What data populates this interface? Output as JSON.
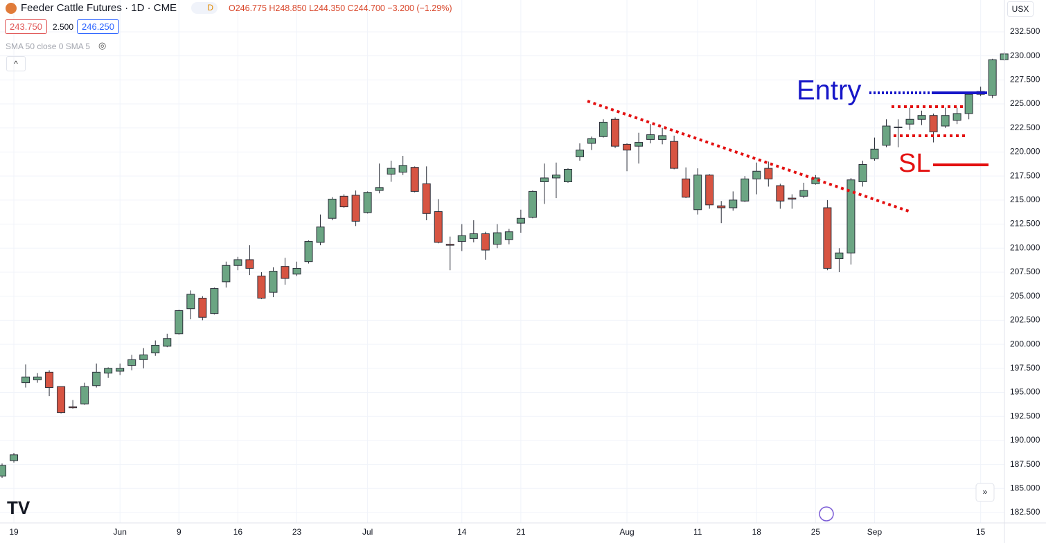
{
  "toolbar": {
    "symbol": "Feeder Cattle Futures · 1D · CME",
    "badge": "D",
    "ohlc": "O246.775 H248.850 L244.350 C244.700 −3.200 (−1.29%)",
    "bid": "243.750",
    "spread": "2.500",
    "ask": "246.250",
    "indicator": "SMA 50 close 0 SMA 5",
    "currency": "USX"
  },
  "chart_data": {
    "type": "candlestick",
    "up_color": "#6ba583",
    "down_color": "#d75442",
    "outline_color": "#2a2e39",
    "grid": true,
    "annotations": {
      "entry": "Entry",
      "stop": "SL"
    },
    "categories": [
      null,
      "19",
      null,
      null,
      null,
      null,
      null,
      null,
      null,
      null,
      "Jun",
      null,
      null,
      null,
      null,
      "9",
      null,
      null,
      null,
      null,
      "16",
      null,
      null,
      null,
      null,
      "23",
      null,
      null,
      null,
      null,
      null,
      "Jul",
      null,
      null,
      null,
      null,
      null,
      null,
      null,
      "14",
      null,
      null,
      null,
      null,
      "21",
      null,
      null,
      null,
      null,
      null,
      null,
      null,
      null,
      "Aug",
      null,
      null,
      null,
      null,
      null,
      "11",
      null,
      null,
      null,
      null,
      "18",
      null,
      null,
      null,
      null,
      "25",
      null,
      null,
      null,
      null,
      "Sep",
      null,
      null,
      null,
      null,
      null,
      null,
      null,
      null,
      "15",
      null,
      null
    ],
    "open": [
      186.3,
      187.9,
      196.0,
      196.3,
      197.1,
      195.6,
      193.5,
      193.8,
      195.7,
      197.0,
      197.2,
      197.8,
      198.4,
      199.1,
      199.8,
      201.1,
      203.7,
      204.8,
      203.2,
      206.5,
      208.2,
      208.8,
      207.1,
      205.4,
      208.1,
      207.3,
      208.6,
      210.6,
      213.1,
      215.4,
      215.5,
      213.7,
      216.0,
      217.7,
      217.9,
      218.4,
      216.7,
      213.8,
      210.4,
      210.7,
      211.0,
      211.5,
      210.4,
      210.9,
      212.6,
      213.2,
      216.9,
      217.3,
      216.9,
      219.5,
      220.9,
      221.6,
      223.4,
      220.8,
      220.6,
      221.3,
      221.3,
      221.1,
      217.2,
      214.0,
      217.6,
      214.4,
      214.2,
      214.9,
      217.2,
      218.3,
      216.5,
      215.2,
      215.4,
      216.7,
      214.2,
      208.9,
      209.5,
      216.9,
      219.3,
      220.7,
      222.6,
      222.9,
      223.4,
      223.8,
      222.7,
      223.3,
      224.0,
      226.3,
      225.9,
      229.6
    ],
    "high": [
      187.6,
      188.7,
      197.9,
      197.0,
      197.3,
      195.6,
      194.2,
      196.0,
      198.0,
      197.6,
      198.0,
      198.9,
      199.6,
      200.4,
      201.1,
      203.6,
      205.6,
      205.0,
      205.9,
      208.6,
      209.1,
      210.3,
      207.5,
      208.0,
      209.0,
      208.6,
      210.8,
      213.5,
      215.3,
      215.6,
      216.0,
      215.9,
      218.8,
      219.1,
      219.6,
      218.5,
      218.5,
      215.1,
      211.2,
      212.5,
      212.9,
      211.7,
      212.5,
      212.0,
      214.0,
      216.0,
      218.8,
      218.9,
      218.3,
      220.9,
      221.6,
      223.4,
      223.6,
      220.9,
      222.0,
      222.9,
      222.5,
      221.7,
      218.4,
      218.3,
      217.7,
      214.9,
      215.9,
      217.5,
      218.9,
      219.0,
      216.7,
      215.6,
      216.8,
      217.6,
      215.0,
      210.0,
      217.3,
      219.1,
      221.5,
      223.4,
      223.4,
      224.6,
      224.3,
      224.0,
      224.6,
      224.6,
      226.2,
      226.8,
      229.7,
      230.4
    ],
    "low": [
      186.1,
      187.7,
      195.5,
      196.0,
      194.6,
      192.8,
      193.3,
      193.7,
      195.5,
      196.5,
      196.8,
      197.3,
      197.5,
      198.8,
      199.7,
      201.0,
      202.6,
      202.5,
      203.1,
      205.9,
      207.7,
      207.2,
      204.7,
      204.9,
      206.2,
      207.1,
      208.4,
      210.3,
      212.9,
      214.2,
      212.3,
      213.6,
      215.7,
      216.9,
      217.6,
      215.8,
      212.9,
      210.5,
      207.7,
      209.7,
      210.6,
      208.8,
      210.0,
      210.4,
      211.6,
      213.1,
      214.6,
      215.2,
      216.8,
      219.1,
      220.2,
      221.5,
      220.4,
      218.0,
      218.8,
      220.9,
      220.8,
      218.2,
      215.2,
      213.5,
      214.1,
      212.6,
      213.9,
      214.8,
      215.6,
      216.4,
      214.1,
      214.1,
      215.2,
      216.6,
      207.7,
      207.5,
      208.3,
      216.4,
      219.1,
      220.5,
      220.5,
      222.3,
      222.8,
      221.0,
      222.5,
      222.9,
      223.4,
      225.8,
      225.6,
      229.5
    ],
    "close": [
      187.4,
      188.5,
      196.6,
      196.6,
      195.5,
      192.9,
      193.4,
      195.6,
      197.1,
      197.5,
      197.5,
      198.4,
      198.9,
      199.9,
      200.6,
      203.5,
      205.2,
      202.8,
      205.8,
      208.2,
      208.8,
      207.9,
      204.8,
      207.6,
      206.85,
      207.9,
      210.7,
      212.2,
      215.1,
      214.3,
      212.8,
      215.8,
      216.3,
      218.3,
      218.6,
      215.9,
      213.6,
      210.6,
      210.3,
      211.3,
      211.5,
      209.8,
      211.6,
      211.7,
      213.1,
      215.9,
      217.3,
      217.6,
      218.2,
      220.2,
      221.4,
      223.1,
      220.6,
      220.2,
      221.0,
      221.8,
      221.7,
      218.3,
      215.3,
      217.6,
      214.5,
      214.2,
      215.0,
      217.2,
      218.0,
      217.2,
      214.9,
      215.1,
      216.0,
      217.3,
      207.9,
      209.5,
      217.1,
      218.7,
      220.3,
      222.7,
      222.6,
      223.4,
      223.8,
      222.1,
      223.8,
      224.0,
      226.0,
      226.0,
      229.6,
      230.2
    ],
    "ylim": [
      181.42,
      235.81
    ],
    "yticks": [
      {
        "value": 182.5,
        "label": "182.500"
      },
      {
        "value": 185,
        "label": "185.000"
      },
      {
        "value": 187.5,
        "label": "187.500"
      },
      {
        "value": 190,
        "label": "190.000"
      },
      {
        "value": 192.5,
        "label": "192.500"
      },
      {
        "value": 195,
        "label": "195.000"
      },
      {
        "value": 197.5,
        "label": "197.500"
      },
      {
        "value": 200,
        "label": "200.000"
      },
      {
        "value": 202.5,
        "label": "202.500"
      },
      {
        "value": 205,
        "label": "205.000"
      },
      {
        "value": 207.5,
        "label": "207.500"
      },
      {
        "value": 210,
        "label": "210.000"
      },
      {
        "value": 212.5,
        "label": "212.500"
      },
      {
        "value": 215,
        "label": "215.000"
      },
      {
        "value": 217.5,
        "label": "217.500"
      },
      {
        "value": 220,
        "label": "220.000"
      },
      {
        "value": 222.5,
        "label": "222.500"
      },
      {
        "value": 225,
        "label": "225.000"
      },
      {
        "value": 227.5,
        "label": "227.500"
      },
      {
        "value": 230,
        "label": "230.000"
      },
      {
        "value": 232.5,
        "label": "232.500"
      }
    ]
  }
}
